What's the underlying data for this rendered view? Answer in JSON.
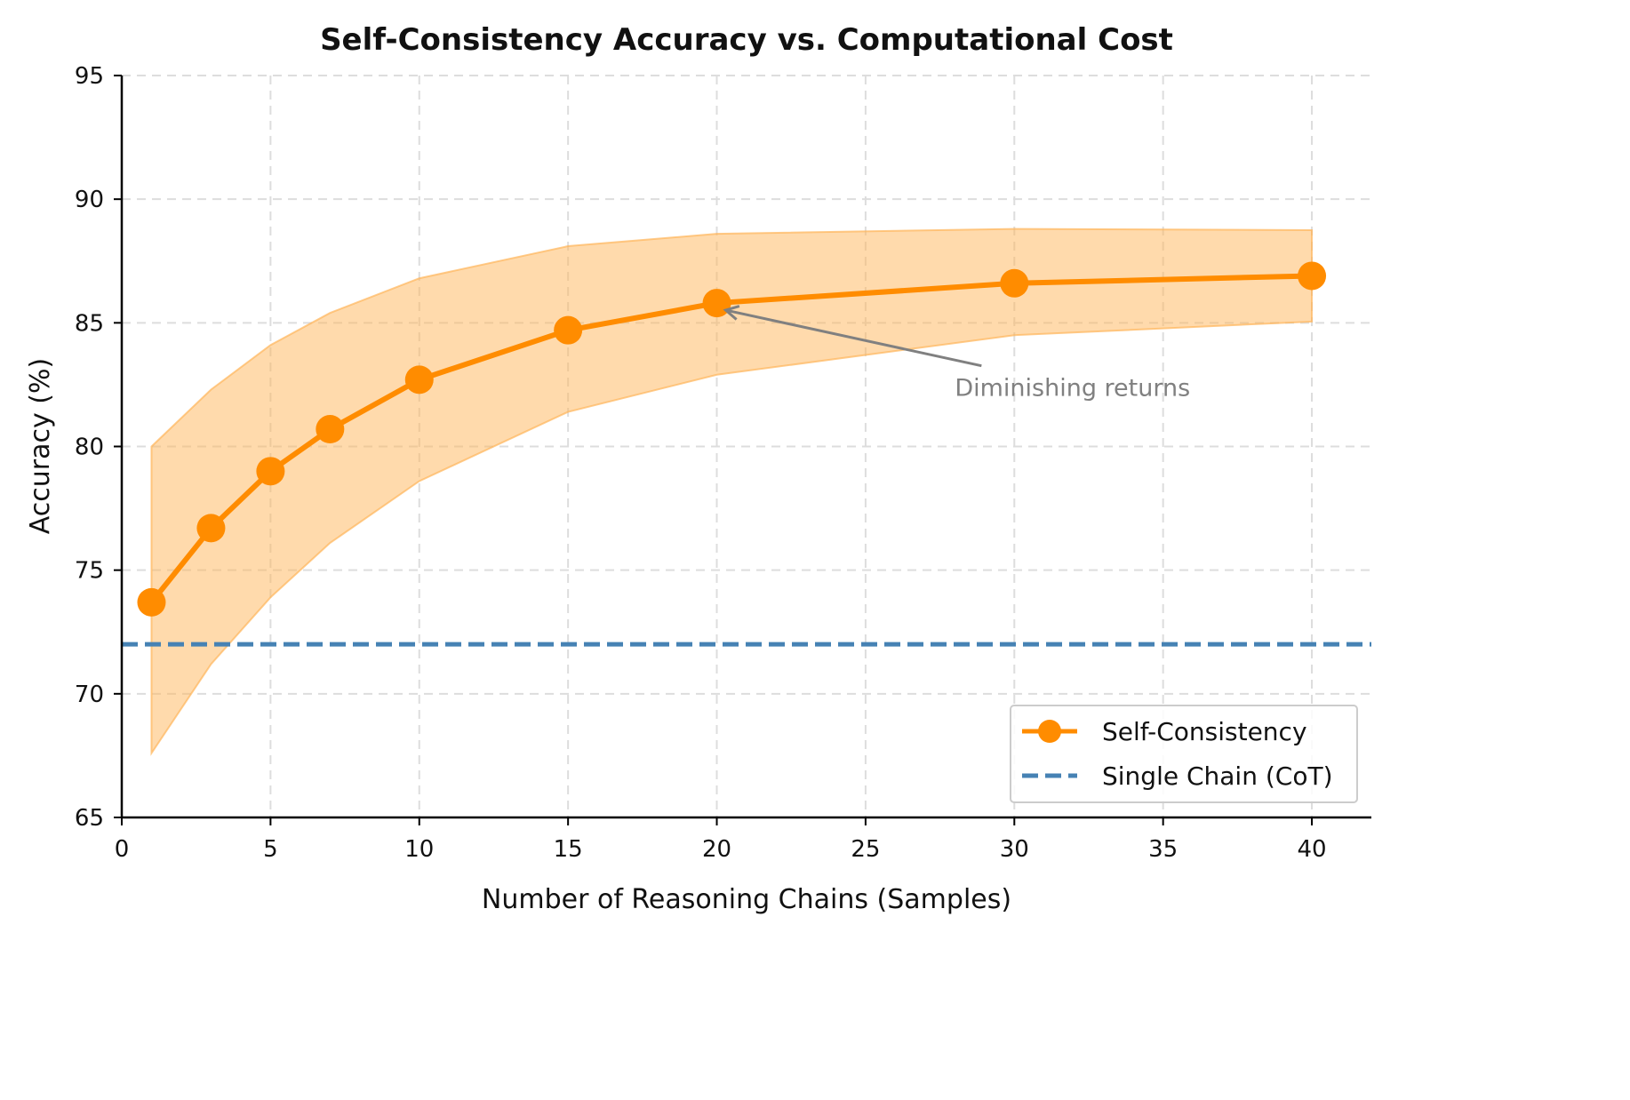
{
  "chart_data": {
    "type": "line",
    "title": "Self-Consistency Accuracy vs. Computational Cost",
    "xlabel": "Number of Reasoning Chains (Samples)",
    "ylabel": "Accuracy (%)",
    "xlim": [
      0,
      42
    ],
    "ylim": [
      65,
      95
    ],
    "xticks": [
      0,
      5,
      10,
      15,
      20,
      25,
      30,
      35,
      40
    ],
    "yticks": [
      65,
      70,
      75,
      80,
      85,
      90,
      95
    ],
    "grid": true,
    "legend_position": "lower-right",
    "x": [
      1,
      3,
      5,
      7,
      10,
      15,
      20,
      30,
      40
    ],
    "series": [
      {
        "name": "Self-Consistency",
        "color": "#ff8c00",
        "marker": "circle",
        "values": [
          73.7,
          76.7,
          79.0,
          80.7,
          82.7,
          84.7,
          85.8,
          86.6,
          86.9
        ],
        "band_upper": [
          80.0,
          82.3,
          84.1,
          85.4,
          86.8,
          88.1,
          88.6,
          88.8,
          88.75
        ],
        "band_lower": [
          67.6,
          71.2,
          73.9,
          76.1,
          78.6,
          81.4,
          82.9,
          84.5,
          85.05
        ]
      },
      {
        "name": "Single Chain (CoT)",
        "color": "#4682b4",
        "style": "dashed",
        "constant": 72.0
      }
    ],
    "annotations": [
      {
        "text": "Diminishing returns",
        "x": 28,
        "y": 82.4,
        "arrow_to": [
          20,
          85.8
        ],
        "color": "#808080"
      }
    ]
  }
}
